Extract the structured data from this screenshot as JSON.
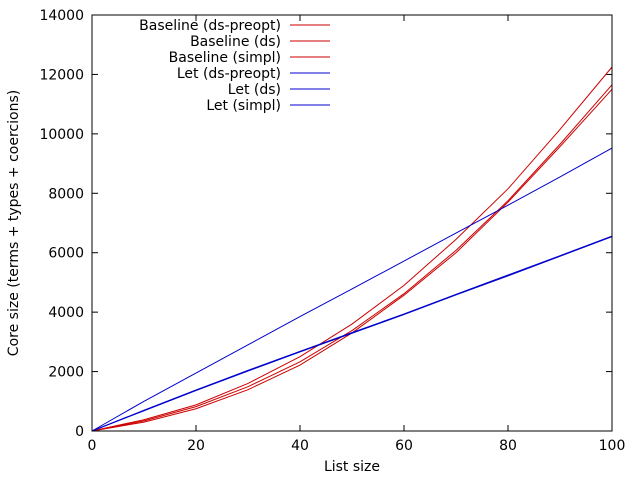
{
  "chart_data": {
    "type": "line",
    "title": "",
    "xlabel": "List size",
    "ylabel": "Core size (terms + types + coercions)",
    "xlim": [
      0,
      100
    ],
    "ylim": [
      0,
      14000
    ],
    "x_ticks": [
      0,
      20,
      40,
      60,
      80,
      100
    ],
    "y_ticks": [
      0,
      2000,
      4000,
      6000,
      8000,
      10000,
      12000,
      14000
    ],
    "grid": false,
    "legend_position": "top-left",
    "x": [
      0,
      10,
      20,
      30,
      40,
      50,
      60,
      70,
      80,
      90,
      100
    ],
    "series": [
      {
        "name": "Baseline (ds-preopt)",
        "color": "#cc0000",
        "values": [
          0,
          380,
          880,
          1600,
          2500,
          3600,
          4900,
          6450,
          8150,
          10150,
          12250
        ]
      },
      {
        "name": "Baseline (ds)",
        "color": "#cc0000",
        "values": [
          0,
          340,
          820,
          1490,
          2330,
          3380,
          4620,
          6080,
          7750,
          9650,
          11650
        ]
      },
      {
        "name": "Baseline (simpl)",
        "color": "#cc0000",
        "values": [
          0,
          300,
          750,
          1390,
          2220,
          3300,
          4570,
          6000,
          7700,
          9570,
          11500
        ]
      },
      {
        "name": "Let (ds-preopt)",
        "color": "#0000cc",
        "values": [
          0,
          1000,
          1950,
          2900,
          3850,
          4780,
          5720,
          6660,
          7600,
          8550,
          9520
        ]
      },
      {
        "name": "Let (ds)",
        "color": "#0000cc",
        "values": [
          0,
          680,
          1360,
          2020,
          2660,
          3290,
          3920,
          4580,
          5220,
          5880,
          6540
        ]
      },
      {
        "name": "Let (simpl)",
        "color": "#0000cc",
        "values": [
          0,
          700,
          1380,
          2040,
          2680,
          3310,
          3940,
          4600,
          5250,
          5900,
          6560
        ]
      }
    ]
  }
}
